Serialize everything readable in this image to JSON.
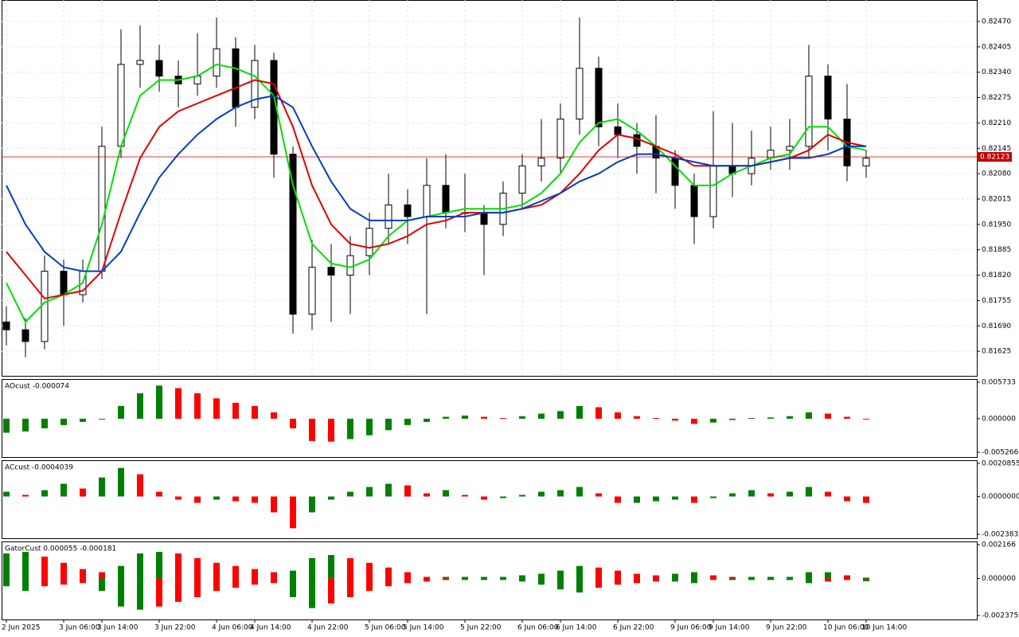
{
  "chart_data": [
    {
      "type": "candlestick",
      "grid": true,
      "up_color": "#ffffff",
      "down_color": "#000000",
      "categories": [
        "2 Jun 2025",
        null,
        null,
        "3 Jun 06:00",
        null,
        "3 Jun 14:00",
        null,
        null,
        "3 Jun 22:00",
        null,
        null,
        "4 Jun 06:00",
        null,
        "4 Jun 14:00",
        null,
        null,
        "4 Jun 22:00",
        null,
        null,
        "5 Jun 06:00",
        null,
        "5 Jun 14:00",
        null,
        null,
        "5 Jun 22:00",
        null,
        null,
        "6 Jun 06:00",
        null,
        "6 Jun 14:00",
        null,
        null,
        "6 Jun 22:00",
        null,
        null,
        "9 Jun 06:00",
        null,
        "9 Jun 14:00",
        null,
        null,
        "9 Jun 22:00",
        null,
        null,
        "10 Jun 06:00",
        null,
        "10 Jun 14:00"
      ],
      "open": [
        0.817,
        0.8168,
        0.8165,
        0.8183,
        0.8177,
        0.8183,
        0.8215,
        0.8236,
        0.8237,
        0.8233,
        0.8231,
        0.8233,
        0.824,
        0.8225,
        0.8237,
        0.8213,
        0.8172,
        0.8184,
        0.8182,
        0.8187,
        0.8194,
        0.82,
        0.8197,
        0.8205,
        0.8198,
        0.8198,
        0.8195,
        0.8203,
        0.821,
        0.8212,
        0.8222,
        0.8235,
        0.822,
        0.8218,
        0.8215,
        0.8212,
        0.8205,
        0.8197,
        0.821,
        0.8208,
        0.8212,
        0.8214,
        0.8215,
        0.8233,
        0.8222,
        0.821
      ],
      "high": [
        0.8174,
        0.8171,
        0.8187,
        0.8186,
        0.8186,
        0.822,
        0.8245,
        0.8246,
        0.8241,
        0.8237,
        0.8244,
        0.8248,
        0.8243,
        0.8241,
        0.8239,
        0.8215,
        0.8191,
        0.819,
        0.8192,
        0.8198,
        0.8208,
        0.8204,
        0.8212,
        0.8213,
        0.8208,
        0.82,
        0.8206,
        0.8213,
        0.8222,
        0.8226,
        0.8248,
        0.8238,
        0.8226,
        0.8221,
        0.8223,
        0.8214,
        0.8208,
        0.8224,
        0.8221,
        0.8219,
        0.822,
        0.8222,
        0.8241,
        0.8236,
        0.8231,
        0.8214
      ],
      "low": [
        0.8164,
        0.8161,
        0.8163,
        0.8169,
        0.8175,
        0.8181,
        0.8212,
        0.823,
        0.8229,
        0.8225,
        0.8228,
        0.823,
        0.822,
        0.8222,
        0.8207,
        0.8167,
        0.8168,
        0.817,
        0.8172,
        0.8182,
        0.819,
        0.819,
        0.8172,
        0.8194,
        0.8193,
        0.8182,
        0.8192,
        0.8199,
        0.8206,
        0.8208,
        0.8218,
        0.8215,
        0.8212,
        0.8208,
        0.8203,
        0.8199,
        0.819,
        0.8194,
        0.8202,
        0.8205,
        0.8209,
        0.8209,
        0.8212,
        0.8214,
        0.8206,
        0.8207
      ],
      "close": [
        0.8168,
        0.8165,
        0.8183,
        0.8177,
        0.8183,
        0.8215,
        0.8236,
        0.8237,
        0.8233,
        0.8231,
        0.8233,
        0.824,
        0.8225,
        0.8237,
        0.8213,
        0.8172,
        0.8184,
        0.8182,
        0.8187,
        0.8194,
        0.82,
        0.8197,
        0.8205,
        0.8198,
        0.8198,
        0.8195,
        0.8203,
        0.821,
        0.8212,
        0.8222,
        0.8235,
        0.822,
        0.8218,
        0.8215,
        0.8212,
        0.8205,
        0.8197,
        0.821,
        0.8208,
        0.8212,
        0.8214,
        0.8215,
        0.8233,
        0.8222,
        0.821,
        0.8212
      ],
      "series": [
        {
          "color": "#00e000",
          "values": [
            0.818,
            0.817,
            0.8175,
            0.8177,
            0.818,
            0.8195,
            0.8215,
            0.8228,
            0.8232,
            0.8232,
            0.8233,
            0.8236,
            0.8235,
            0.8233,
            0.8228,
            0.8205,
            0.819,
            0.8185,
            0.8184,
            0.8186,
            0.8192,
            0.8196,
            0.8197,
            0.8198,
            0.8199,
            0.8199,
            0.8199,
            0.82,
            0.8203,
            0.8208,
            0.8216,
            0.8221,
            0.8222,
            0.8219,
            0.8215,
            0.821,
            0.8205,
            0.8205,
            0.8208,
            0.821,
            0.8212,
            0.8213,
            0.822,
            0.822,
            0.8215,
            0.8214
          ]
        },
        {
          "color": "#e00000",
          "values": [
            0.8188,
            0.8182,
            0.8176,
            0.8177,
            0.8178,
            0.8183,
            0.8198,
            0.8212,
            0.822,
            0.8224,
            0.8226,
            0.8228,
            0.823,
            0.8232,
            0.8231,
            0.822,
            0.8205,
            0.8195,
            0.819,
            0.8189,
            0.819,
            0.8192,
            0.8195,
            0.8196,
            0.8198,
            0.8198,
            0.8198,
            0.8199,
            0.82,
            0.8203,
            0.8208,
            0.8214,
            0.8218,
            0.8217,
            0.8215,
            0.8213,
            0.821,
            0.821,
            0.821,
            0.821,
            0.8211,
            0.8212,
            0.8214,
            0.8218,
            0.8216,
            0.8215
          ]
        },
        {
          "color": "#0040c0",
          "values": [
            0.8205,
            0.8195,
            0.8188,
            0.8184,
            0.8183,
            0.8183,
            0.8188,
            0.8198,
            0.8207,
            0.8213,
            0.8218,
            0.8222,
            0.8225,
            0.8227,
            0.8228,
            0.8225,
            0.8215,
            0.8206,
            0.8199,
            0.8196,
            0.8196,
            0.8196,
            0.8197,
            0.8197,
            0.8197,
            0.8198,
            0.8198,
            0.8199,
            0.8201,
            0.8203,
            0.8206,
            0.8208,
            0.8211,
            0.8213,
            0.8213,
            0.8212,
            0.8211,
            0.821,
            0.821,
            0.821,
            0.8211,
            0.8212,
            0.8212,
            0.8213,
            0.8215,
            0.8215
          ]
        }
      ],
      "current_price": {
        "value": 0.82123,
        "label": "0.82123",
        "color": "#c00000"
      },
      "ylim": [
        0.81562,
        0.82525
      ],
      "yticks": [
        {
          "value": 0.8247,
          "label": "0.82470"
        },
        {
          "value": 0.82405,
          "label": "0.82405"
        },
        {
          "value": 0.8234,
          "label": "0.82340"
        },
        {
          "value": 0.82275,
          "label": "0.82275"
        },
        {
          "value": 0.8221,
          "label": "0.82210"
        },
        {
          "value": 0.82145,
          "label": "0.82145"
        },
        {
          "value": 0.8208,
          "label": "0.82080"
        },
        {
          "value": 0.82015,
          "label": "0.82015"
        },
        {
          "value": 0.8195,
          "label": "0.81950"
        },
        {
          "value": 0.81885,
          "label": "0.81885"
        },
        {
          "value": 0.8182,
          "label": "0.81820"
        },
        {
          "value": 0.81755,
          "label": "0.81755"
        },
        {
          "value": 0.8169,
          "label": "0.81690"
        },
        {
          "value": 0.81625,
          "label": "0.81625"
        }
      ]
    },
    {
      "type": "histogram",
      "title": "AOcust -0.000074",
      "up_color": "#008000",
      "down_color": "#ff0000",
      "values": [
        -0.0022,
        -0.002,
        -0.0015,
        -0.001,
        -0.0005,
        0.0,
        0.002,
        0.004,
        0.0052,
        0.0048,
        0.004,
        0.0032,
        0.0025,
        0.002,
        0.001,
        -0.0015,
        -0.0035,
        -0.0036,
        -0.0032,
        -0.0026,
        -0.0018,
        -0.001,
        -0.0005,
        0.0003,
        0.0005,
        0.0003,
        0.0001,
        0.0004,
        0.0008,
        0.0012,
        0.002,
        0.0018,
        0.001,
        0.0004,
        0.0001,
        -0.0003,
        -0.0008,
        -0.0006,
        -0.0002,
        0.0001,
        0.0002,
        0.0004,
        0.001,
        0.0008,
        0.0003,
        -7.4e-05
      ],
      "ylim": [
        -0.006016,
        0.006233
      ],
      "yticks": [
        0.005733,
        {
          "value": 0,
          "label": "0.000000"
        },
        -0.005266
      ]
    },
    {
      "type": "histogram",
      "title": "ACcust -0.0004039",
      "up_color": "#008000",
      "down_color": "#ff0000",
      "values": [
        0.0003,
        0.0001,
        0.0004,
        0.0008,
        0.0005,
        0.0012,
        0.0018,
        0.0014,
        0.0003,
        -0.0002,
        -0.0004,
        -0.0002,
        -0.0003,
        -0.0004,
        -0.001,
        -0.002,
        -0.001,
        -0.0002,
        0.0003,
        0.0006,
        0.0008,
        0.0007,
        0.0002,
        0.0004,
        0.0001,
        -0.0002,
        -0.0001,
        0.0001,
        0.0003,
        0.0004,
        0.0006,
        0.0002,
        -0.0004,
        -0.0004,
        -0.0003,
        -0.0002,
        -0.0004,
        -0.0001,
        0.0002,
        0.0004,
        0.0002,
        0.0003,
        0.0006,
        0.0003,
        -0.0003,
        -0.0004039
      ],
      "ylim": [
        -0.002634,
        0.002286
      ],
      "yticks": [
        0.0020855,
        {
          "value": 0,
          "label": "0.0000000"
        },
        -0.0023832
      ]
    },
    {
      "type": "gator",
      "title": "GatorCust 0.000055 -0.000181",
      "up_color": "#008000",
      "down_color": "#ff0000",
      "upper": [
        0.0016,
        0.0017,
        0.0014,
        0.001,
        0.0006,
        0.0004,
        0.0008,
        0.0016,
        0.0017,
        0.0016,
        0.0013,
        0.001,
        0.0008,
        0.0006,
        0.0004,
        0.0005,
        0.0013,
        0.0015,
        0.0013,
        0.001,
        0.0007,
        0.0004,
        0.0001,
        0.0001,
        0.0001,
        0.0001,
        0.0001,
        0.0002,
        0.0003,
        0.0005,
        0.0008,
        0.0007,
        0.0005,
        0.0003,
        0.0002,
        0.0003,
        0.0004,
        0.0002,
        0.0001,
        0.0001,
        0.0001,
        0.0001,
        0.0004,
        0.0004,
        0.0002,
        5.5e-05
      ],
      "lower": [
        -0.0005,
        -0.0008,
        -0.0005,
        -0.0004,
        -0.0003,
        -0.0008,
        -0.0018,
        -0.002,
        -0.0018,
        -0.0015,
        -0.0012,
        -0.0008,
        -0.0006,
        -0.0004,
        -0.0003,
        -0.0012,
        -0.0019,
        -0.0016,
        -0.0012,
        -0.0008,
        -0.0005,
        -0.0003,
        -0.0002,
        -0.0001,
        -0.0001,
        -0.0001,
        -0.0001,
        -0.0002,
        -0.0004,
        -0.0007,
        -0.0009,
        -0.0006,
        -0.0004,
        -0.0003,
        -0.0002,
        -0.0002,
        -0.0003,
        -0.0001,
        -0.0001,
        -0.0001,
        -0.0001,
        -0.0001,
        -0.0003,
        -0.0002,
        -0.0001,
        -0.000181
      ],
      "ylim": [
        -0.00263,
        0.00237
      ],
      "yticks": [
        0.002166,
        {
          "value": 0,
          "label": "0.000000"
        },
        -0.002375
      ]
    }
  ]
}
